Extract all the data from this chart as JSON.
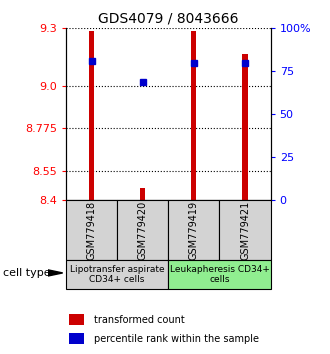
{
  "title": "GDS4079 / 8043666",
  "samples": [
    "GSM779418",
    "GSM779420",
    "GSM779419",
    "GSM779421"
  ],
  "red_values": [
    9.285,
    8.465,
    9.285,
    9.165
  ],
  "blue_values": [
    9.13,
    9.02,
    9.12,
    9.12
  ],
  "ymin": 8.4,
  "ymax": 9.3,
  "yticks_left": [
    8.4,
    8.55,
    8.775,
    9.0,
    9.3
  ],
  "yticks_right": [
    0,
    25,
    50,
    75,
    100
  ],
  "yticks_right_labels": [
    "0",
    "25",
    "50",
    "75",
    "100%"
  ],
  "cell_type_label": "cell type",
  "group1_label": "Lipotransfer aspirate\nCD34+ cells",
  "group2_label": "Leukapheresis CD34+\ncells",
  "group1_color": "#d3d3d3",
  "group2_color": "#90EE90",
  "legend_red": "transformed count",
  "legend_blue": "percentile rank within the sample",
  "bar_width": 0.1,
  "red_color": "#cc0000",
  "blue_color": "#0000cc",
  "title_fontsize": 10,
  "tick_fontsize": 8,
  "label_fontsize": 7.5
}
